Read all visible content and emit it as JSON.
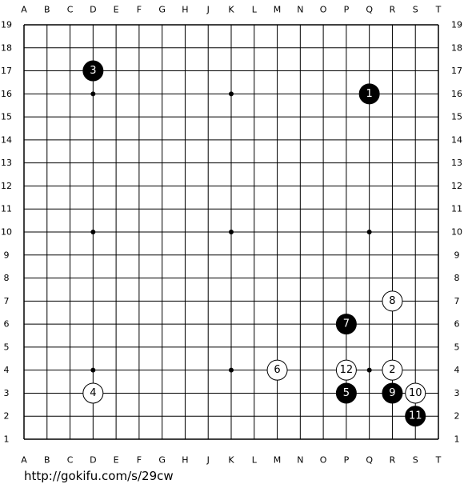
{
  "board": {
    "columns": [
      "A",
      "B",
      "C",
      "D",
      "E",
      "F",
      "G",
      "H",
      "J",
      "K",
      "L",
      "M",
      "N",
      "O",
      "P",
      "Q",
      "R",
      "S",
      "T"
    ],
    "rows": [
      19,
      18,
      17,
      16,
      15,
      14,
      13,
      12,
      11,
      10,
      9,
      8,
      7,
      6,
      5,
      4,
      3,
      2,
      1
    ],
    "hoshi": [
      {
        "col": "D",
        "row": 16
      },
      {
        "col": "K",
        "row": 16
      },
      {
        "col": "Q",
        "row": 16
      },
      {
        "col": "D",
        "row": 10
      },
      {
        "col": "K",
        "row": 10
      },
      {
        "col": "Q",
        "row": 10
      },
      {
        "col": "D",
        "row": 4
      },
      {
        "col": "K",
        "row": 4
      },
      {
        "col": "Q",
        "row": 4
      }
    ],
    "stones": [
      {
        "move": 1,
        "color": "black",
        "col": "Q",
        "row": 16
      },
      {
        "move": 2,
        "color": "white",
        "col": "R",
        "row": 4
      },
      {
        "move": 3,
        "color": "black",
        "col": "D",
        "row": 17
      },
      {
        "move": 4,
        "color": "white",
        "col": "D",
        "row": 3
      },
      {
        "move": 5,
        "color": "black",
        "col": "P",
        "row": 3
      },
      {
        "move": 6,
        "color": "white",
        "col": "M",
        "row": 4
      },
      {
        "move": 7,
        "color": "black",
        "col": "P",
        "row": 6
      },
      {
        "move": 8,
        "color": "white",
        "col": "R",
        "row": 7
      },
      {
        "move": 9,
        "color": "black",
        "col": "R",
        "row": 3
      },
      {
        "move": 10,
        "color": "white",
        "col": "S",
        "row": 3
      },
      {
        "move": 11,
        "color": "black",
        "col": "S",
        "row": 2
      },
      {
        "move": 12,
        "color": "white",
        "col": "P",
        "row": 4
      }
    ]
  },
  "footer": {
    "url": "http://gokifu.com/s/29cw"
  }
}
